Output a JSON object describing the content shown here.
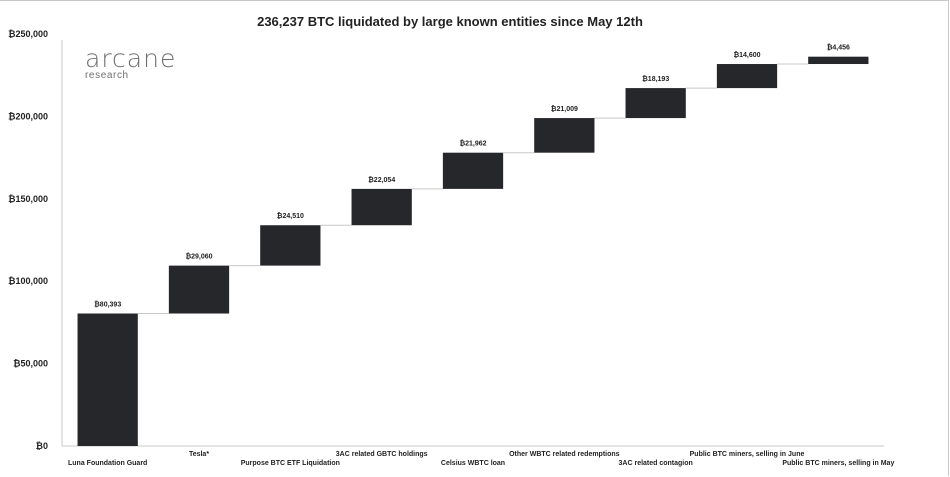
{
  "chart_data": {
    "type": "bar",
    "subtype": "waterfall",
    "title": "236,237 BTC liquidated by large known entities since May 12th",
    "logo": {
      "name": "arcane",
      "sub": "research"
    },
    "categories": [
      "Luna Foundation Guard",
      "Tesla*",
      "Purpose BTC ETF Liquidation",
      "3AC related GBTC holdings",
      "Celsius WBTC loan",
      "Other WBTC related redemptions",
      "3AC related contagion",
      "Public BTC miners, selling in June",
      "Public BTC miners, selling in May"
    ],
    "values": [
      80393,
      29060,
      24510,
      22054,
      21962,
      21009,
      18193,
      14600,
      4456
    ],
    "value_labels": [
      "₿80,393",
      "₿29,060",
      "₿24,510",
      "₿22,054",
      "₿21,962",
      "₿21,009",
      "₿18,193",
      "₿14,600",
      "₿4,456"
    ],
    "ylim": [
      0,
      250000
    ],
    "yticks": [
      0,
      50000,
      100000,
      150000,
      200000,
      250000
    ],
    "ytick_labels": [
      "₿0",
      "₿50,000",
      "₿100,000",
      "₿150,000",
      "₿200,000",
      "₿250,000"
    ],
    "bar_color": "#25272b",
    "connector_color": "#c8c8c8",
    "grid": false
  }
}
